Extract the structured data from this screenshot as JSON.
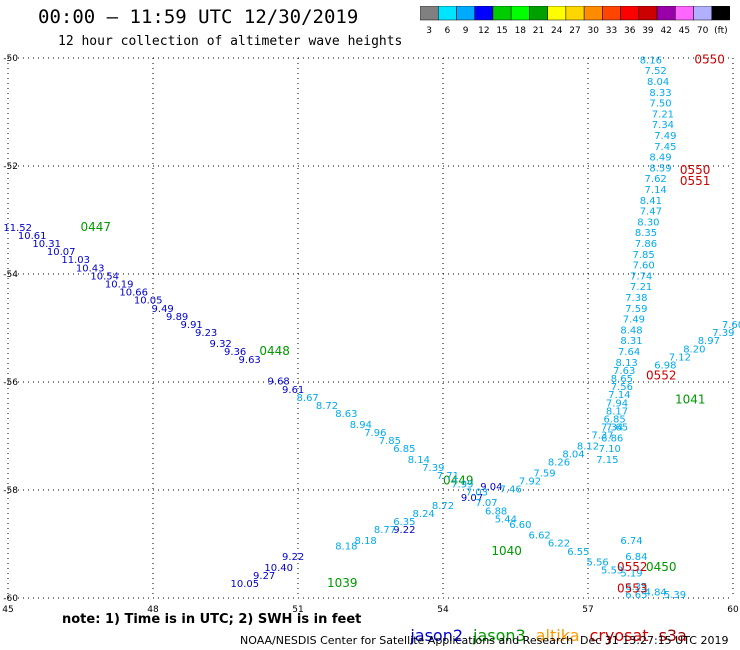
{
  "header": {
    "title": "00:00 — 11:59 UTC 12/30/2019",
    "subtitle": "12 hour collection of altimeter wave heights"
  },
  "colorbar": {
    "labels": [
      "3",
      "6",
      "9",
      "12",
      "15",
      "18",
      "21",
      "24",
      "27",
      "30",
      "33",
      "36",
      "39",
      "42",
      "45",
      "70",
      "(ft)"
    ],
    "colors": [
      "#808080",
      "#00e5ff",
      "#00aaff",
      "#0000ff",
      "#00cc00",
      "#00ff00",
      "#00a000",
      "#ffff00",
      "#ffd700",
      "#ff8c00",
      "#ff4500",
      "#ff0000",
      "#cc0000",
      "#9900aa",
      "#ff66ff",
      "#b0b0ff",
      "#000000"
    ]
  },
  "footer": {
    "note": "note: 1) Time is in UTC; 2) SWH is in feet",
    "legend": [
      {
        "label": "jason2",
        "color": "#0000cc"
      },
      {
        "label": "jason3",
        "color": "#009900"
      },
      {
        "label": "altika",
        "color": "#ff9900"
      },
      {
        "label": "cryosat",
        "color": "#cc0000"
      },
      {
        "label": "s3a",
        "color": "#990000"
      }
    ],
    "credit": "NOAA/NESDIS Center for Satellite Applications and Research",
    "timestamp": "Dec 31 13:27:15 UTC 2019"
  },
  "chart_data": {
    "type": "scatter",
    "xlim": [
      45,
      60
    ],
    "ylim": [
      -60,
      -50
    ],
    "x_ticks": [
      45,
      48,
      51,
      54,
      57,
      60
    ],
    "y_ticks": [
      -50,
      -52,
      -54,
      -56,
      -58,
      -60
    ],
    "grid": true,
    "series": [
      {
        "name": "jason2",
        "color": "#0000cc",
        "points": [
          [
            45.2,
            -53.2,
            "11.52"
          ],
          [
            45.5,
            -53.35,
            "10.61"
          ],
          [
            45.8,
            -53.5,
            "10.31"
          ],
          [
            46.1,
            -53.65,
            "10.07"
          ],
          [
            46.4,
            -53.8,
            "11.03"
          ],
          [
            46.7,
            -53.95,
            "10.43"
          ],
          [
            47.0,
            -54.1,
            "10.54"
          ],
          [
            47.3,
            -54.25,
            "10.19"
          ],
          [
            47.6,
            -54.4,
            "10.66"
          ],
          [
            47.9,
            -54.55,
            "10.05"
          ],
          [
            48.2,
            -54.7,
            "9.49"
          ],
          [
            48.5,
            -54.85,
            "9.89"
          ],
          [
            48.8,
            -55.0,
            "9.91"
          ],
          [
            49.1,
            -55.15,
            "9.23"
          ],
          [
            49.4,
            -55.35,
            "9.32"
          ],
          [
            49.7,
            -55.5,
            "9.36"
          ],
          [
            50.0,
            -55.65,
            "9.63"
          ],
          [
            50.6,
            -56.05,
            "9.68"
          ],
          [
            50.9,
            -56.2,
            "9.61"
          ],
          [
            49.9,
            -59.8,
            "10.05"
          ],
          [
            50.3,
            -59.65,
            "9.27"
          ],
          [
            50.6,
            -59.5,
            "10.40"
          ],
          [
            50.9,
            -59.3,
            "9.22"
          ],
          [
            53.2,
            -58.8,
            "9.22"
          ],
          [
            55.0,
            -58.0,
            "9.04"
          ],
          [
            54.6,
            -58.2,
            "9.07"
          ]
        ]
      },
      {
        "name": "jason3",
        "color": "#009900",
        "points": [],
        "labels": [
          [
            46.5,
            -53.2,
            "0447"
          ],
          [
            50.2,
            -55.5,
            "0448"
          ],
          [
            54.0,
            -57.9,
            "0449"
          ],
          [
            55.0,
            -59.2,
            "1040"
          ],
          [
            51.6,
            -59.8,
            "1039"
          ],
          [
            58.8,
            -56.4,
            "1041"
          ],
          [
            58.2,
            -59.5,
            "0450"
          ]
        ]
      },
      {
        "name": "altika",
        "color": "#00aaee",
        "points": [
          [
            51.2,
            -56.35,
            "8.67"
          ],
          [
            51.6,
            -56.5,
            "8.72"
          ],
          [
            52.0,
            -56.65,
            "8.63"
          ],
          [
            52.3,
            -56.85,
            "8.94"
          ],
          [
            52.6,
            -57.0,
            "7.96"
          ],
          [
            52.9,
            -57.15,
            "7.85"
          ],
          [
            53.2,
            -57.3,
            "6.85"
          ],
          [
            53.5,
            -57.5,
            "8.14"
          ],
          [
            53.8,
            -57.65,
            "7.39"
          ],
          [
            54.1,
            -57.8,
            "7.71"
          ],
          [
            54.4,
            -57.95,
            "7.99"
          ],
          [
            54.7,
            -58.1,
            "7.03"
          ],
          [
            54.9,
            -58.3,
            "7.07"
          ],
          [
            55.1,
            -58.45,
            "6.88"
          ],
          [
            55.3,
            -58.6,
            "5.44"
          ],
          [
            55.6,
            -58.7,
            "6.60"
          ],
          [
            56.0,
            -58.9,
            "6.62"
          ],
          [
            56.4,
            -59.05,
            "6.22"
          ],
          [
            56.8,
            -59.2,
            "6.55"
          ],
          [
            57.2,
            -59.4,
            "5.56"
          ],
          [
            57.5,
            -59.55,
            "5.53"
          ],
          [
            52.0,
            -59.1,
            "8.18"
          ],
          [
            52.4,
            -59.0,
            "8.18"
          ],
          [
            52.8,
            -58.8,
            "8.77"
          ],
          [
            53.2,
            -58.65,
            "6.35"
          ],
          [
            53.6,
            -58.5,
            "8.24"
          ],
          [
            54.0,
            -58.35,
            "8.72"
          ],
          [
            55.4,
            -58.05,
            "7.46"
          ],
          [
            55.8,
            -57.9,
            "7.92"
          ],
          [
            56.1,
            -57.75,
            "7.59"
          ],
          [
            56.4,
            -57.55,
            "8.26"
          ],
          [
            56.7,
            -57.4,
            "8.04"
          ],
          [
            57.0,
            -57.25,
            "8.12"
          ],
          [
            57.3,
            -57.05,
            "7.37"
          ],
          [
            57.6,
            -56.9,
            "7.65"
          ],
          [
            57.9,
            -59.0,
            "6.74"
          ],
          [
            58.0,
            -59.3,
            "6.84"
          ],
          [
            57.9,
            -59.6,
            "5.19"
          ],
          [
            58.0,
            -59.85,
            "6.35"
          ],
          [
            58.0,
            -60.0,
            "6.65"
          ],
          [
            58.4,
            -59.95,
            "4.84"
          ],
          [
            58.8,
            -60.0,
            "5.39"
          ],
          [
            58.3,
            -50.1,
            "8.16"
          ],
          [
            58.4,
            -50.3,
            "7.52"
          ],
          [
            58.45,
            -50.5,
            "8.04"
          ],
          [
            58.5,
            -50.7,
            "8.33"
          ],
          [
            58.5,
            -50.9,
            "7.50"
          ],
          [
            58.55,
            -51.1,
            "7.21"
          ],
          [
            58.55,
            -51.3,
            "7.34"
          ],
          [
            58.6,
            -51.5,
            "7.49"
          ],
          [
            58.6,
            -51.7,
            "7.45"
          ],
          [
            58.5,
            -51.9,
            "8.49"
          ],
          [
            58.5,
            -52.1,
            "8.59"
          ],
          [
            58.4,
            -52.3,
            "7.62"
          ],
          [
            58.4,
            -52.5,
            "7.14"
          ],
          [
            58.3,
            -52.7,
            "8.41"
          ],
          [
            58.3,
            -52.9,
            "7.47"
          ],
          [
            58.25,
            -53.1,
            "8.30"
          ],
          [
            58.2,
            -53.3,
            "8.35"
          ],
          [
            58.2,
            -53.5,
            "7.86"
          ],
          [
            58.15,
            -53.7,
            "7.85"
          ],
          [
            58.15,
            -53.9,
            "7.60"
          ],
          [
            58.1,
            -54.1,
            "7.74"
          ],
          [
            58.1,
            -54.3,
            "7.21"
          ],
          [
            58.0,
            -54.5,
            "7.38"
          ],
          [
            58.0,
            -54.7,
            "7.59"
          ],
          [
            57.95,
            -54.9,
            "7.49"
          ],
          [
            57.9,
            -55.1,
            "8.48"
          ],
          [
            57.9,
            -55.3,
            "8.31"
          ],
          [
            57.85,
            -55.5,
            "7.64"
          ],
          [
            57.8,
            -55.7,
            "8.13"
          ],
          [
            57.75,
            -55.85,
            "7.63"
          ],
          [
            57.7,
            -56.0,
            "8.65"
          ],
          [
            57.7,
            -56.15,
            "7.56"
          ],
          [
            57.65,
            -56.3,
            "7.14"
          ],
          [
            57.6,
            -56.45,
            "7.94"
          ],
          [
            57.6,
            -56.6,
            "8.17"
          ],
          [
            57.55,
            -56.75,
            "6.85"
          ],
          [
            57.5,
            -56.9,
            "7.34"
          ],
          [
            57.5,
            -57.1,
            "6.86"
          ],
          [
            57.45,
            -57.3,
            "7.10"
          ],
          [
            57.4,
            -57.5,
            "7.15"
          ],
          [
            58.6,
            -55.75,
            "6.98"
          ],
          [
            58.9,
            -55.6,
            "7.12"
          ],
          [
            59.2,
            -55.45,
            "8.20"
          ],
          [
            59.5,
            -55.3,
            "8.97"
          ],
          [
            59.8,
            -55.15,
            "7.39"
          ],
          [
            60.0,
            -55.0,
            "7.60"
          ]
        ]
      },
      {
        "name": "cryosat",
        "color": "#cc0000",
        "points": [],
        "labels": [
          [
            59.2,
            -50.1,
            "0550"
          ],
          [
            58.9,
            -52.15,
            "0550"
          ],
          [
            58.9,
            -52.35,
            "0551"
          ],
          [
            58.2,
            -55.95,
            "0552"
          ],
          [
            57.6,
            -59.5,
            "0552"
          ],
          [
            57.6,
            -59.9,
            "0553"
          ]
        ]
      },
      {
        "name": "s3a",
        "color": "#990000",
        "points": [],
        "labels": []
      }
    ]
  }
}
